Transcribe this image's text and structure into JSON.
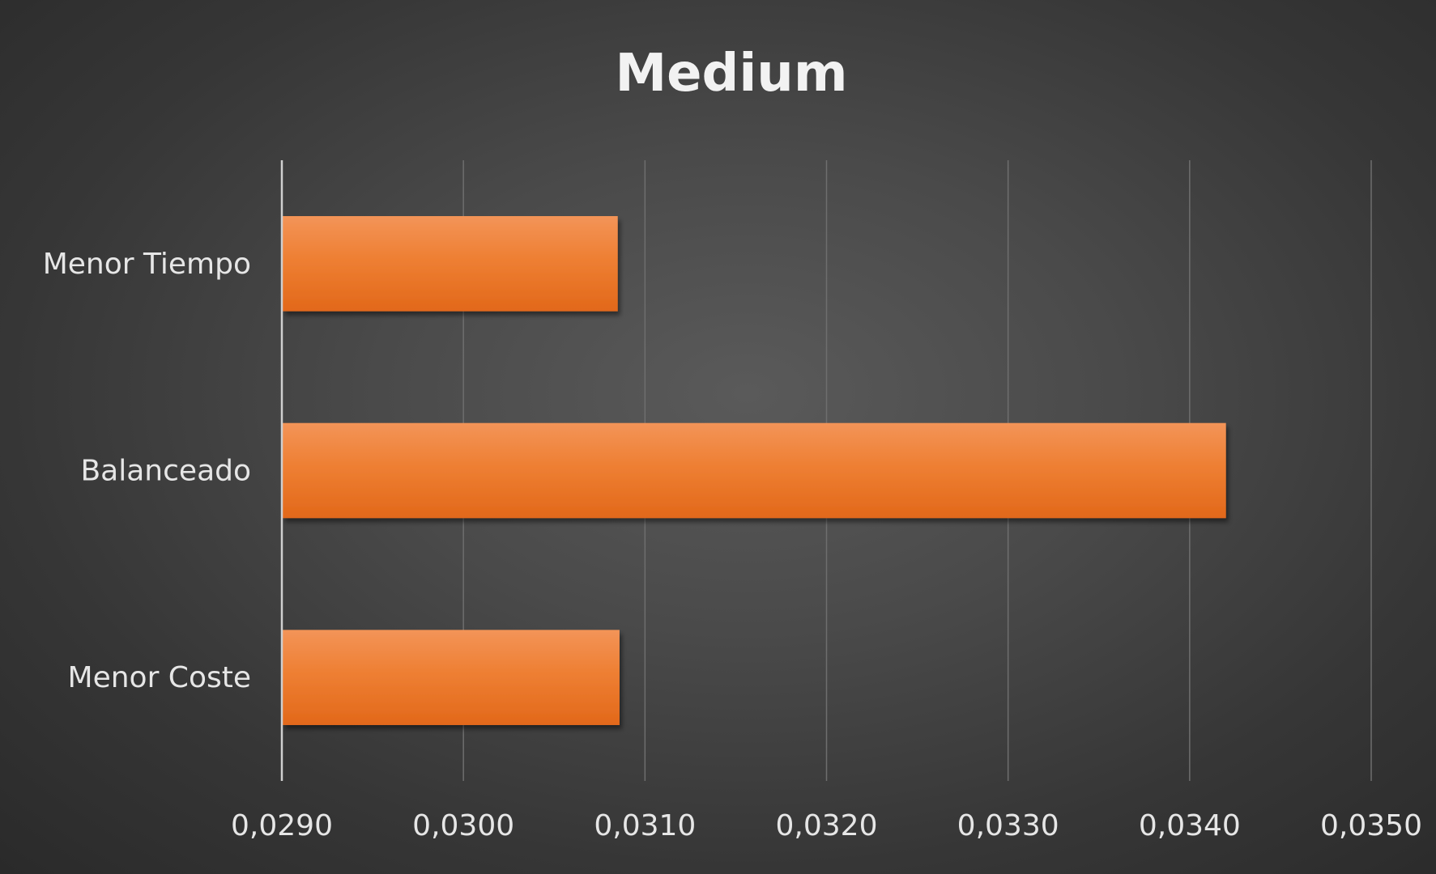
{
  "chart_data": {
    "type": "bar",
    "orientation": "horizontal",
    "title": "Medium",
    "categories": [
      "Menor Tiempo",
      "Balanceado",
      "Menor Coste"
    ],
    "values": [
      0.03085,
      0.0342,
      0.03086
    ],
    "xlim": [
      0.029,
      0.035
    ],
    "x_ticks": [
      "0,0290",
      "0,0300",
      "0,0310",
      "0,0320",
      "0,0330",
      "0,0340",
      "0,0350"
    ],
    "xlabel": "",
    "ylabel": "",
    "grid": "vertical",
    "legend": "none",
    "colors": {
      "bar": "#ed7d31",
      "bar_light": "#f39458",
      "bar_dark": "#e06a1a",
      "text": "#e6e6e6",
      "gridline": "#6e6e6e"
    }
  }
}
